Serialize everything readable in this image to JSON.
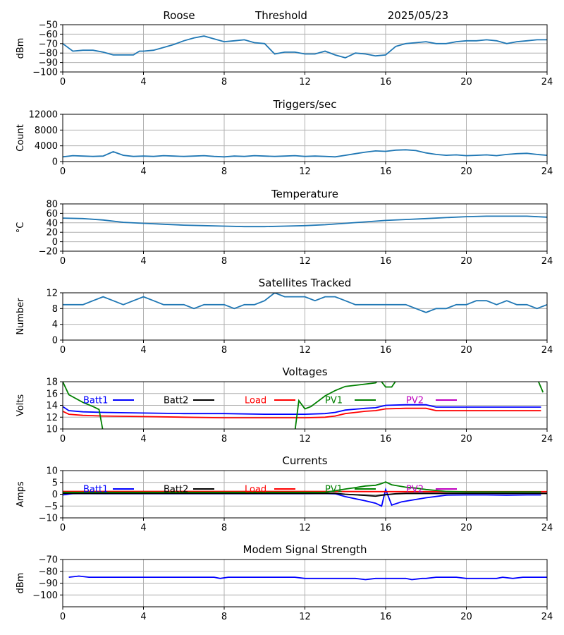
{
  "header": {
    "station": "Roose",
    "mode": "Threshold",
    "date": "2025/05/23"
  },
  "colors": {
    "default": "#1f77b4",
    "batt1": "#0000ff",
    "batt2": "#000000",
    "load": "#ff0000",
    "pv1": "#008000",
    "pv2": "#bf00bf",
    "grid": "#b0b0b0"
  },
  "chart_data": [
    {
      "id": "threshold",
      "type": "line",
      "title": "",
      "ylabel": "dBm",
      "xlim": [
        0,
        24
      ],
      "ylim": [
        -100,
        -50
      ],
      "xticks": [
        0,
        4,
        8,
        12,
        16,
        20,
        24
      ],
      "yticks": [
        -100,
        -90,
        -80,
        -70,
        -60,
        -50
      ],
      "grid": true,
      "series": [
        {
          "color": "#1f77b4",
          "x": [
            0,
            0.5,
            1,
            1.5,
            2,
            2.5,
            3,
            3.5,
            3.8,
            4,
            4.5,
            5,
            5.5,
            6,
            6.5,
            7,
            7.5,
            8,
            8.5,
            9,
            9.5,
            10,
            10.5,
            11,
            11.5,
            12,
            12.5,
            13,
            13.5,
            14,
            14.5,
            15,
            15.5,
            16,
            16.5,
            17,
            17.5,
            18,
            18.5,
            19,
            19.5,
            20,
            20.5,
            21,
            21.5,
            22,
            22.5,
            23,
            23.5,
            24
          ],
          "y": [
            -70,
            -78,
            -77,
            -77,
            -79,
            -82,
            -82,
            -82,
            -78,
            -78,
            -77,
            -74,
            -71,
            -67,
            -64,
            -62,
            -65,
            -68,
            -67,
            -66,
            -69,
            -70,
            -81,
            -79,
            -79,
            -81,
            -81,
            -78,
            -82,
            -85,
            -80,
            -81,
            -83,
            -82,
            -73,
            -70,
            -69,
            -68,
            -70,
            -70,
            -68,
            -67,
            -67,
            -66,
            -67,
            -70,
            -68,
            -67,
            -66,
            -66
          ]
        }
      ]
    },
    {
      "id": "triggers",
      "type": "line",
      "title": "Triggers/sec",
      "ylabel": "Count",
      "xlim": [
        0,
        24
      ],
      "ylim": [
        0,
        12000
      ],
      "xticks": [
        0,
        4,
        8,
        12,
        16,
        20,
        24
      ],
      "yticks": [
        0,
        4000,
        8000,
        12000
      ],
      "grid": true,
      "series": [
        {
          "color": "#1f77b4",
          "x": [
            0,
            0.5,
            1,
            1.5,
            2,
            2.5,
            3,
            3.5,
            4,
            4.5,
            5,
            5.5,
            6,
            6.5,
            7,
            7.5,
            8,
            8.5,
            9,
            9.5,
            10,
            10.5,
            11,
            11.5,
            12,
            12.5,
            13,
            13.5,
            14,
            14.5,
            15,
            15.5,
            16,
            16.5,
            17,
            17.5,
            18,
            18.5,
            19,
            19.5,
            20,
            20.5,
            21,
            21.5,
            22,
            22.5,
            23,
            23.5,
            24
          ],
          "y": [
            1200,
            1500,
            1400,
            1300,
            1400,
            2500,
            1600,
            1300,
            1400,
            1300,
            1500,
            1400,
            1300,
            1400,
            1500,
            1300,
            1200,
            1400,
            1300,
            1500,
            1400,
            1300,
            1400,
            1500,
            1300,
            1400,
            1300,
            1200,
            1600,
            2000,
            2400,
            2700,
            2600,
            2900,
            3000,
            2800,
            2200,
            1800,
            1600,
            1700,
            1500,
            1600,
            1700,
            1500,
            1800,
            2000,
            2100,
            1800,
            1600
          ]
        }
      ]
    },
    {
      "id": "temperature",
      "type": "line",
      "title": "Temperature",
      "ylabel": "°C",
      "xlim": [
        0,
        24
      ],
      "ylim": [
        -20,
        80
      ],
      "xticks": [
        0,
        4,
        8,
        12,
        16,
        20,
        24
      ],
      "yticks": [
        -20,
        0,
        20,
        40,
        60,
        80
      ],
      "grid": true,
      "series": [
        {
          "color": "#1f77b4",
          "x": [
            0,
            1,
            2,
            3,
            4,
            5,
            6,
            7,
            8,
            9,
            10,
            11,
            12,
            13,
            14,
            15,
            16,
            17,
            18,
            19,
            20,
            21,
            22,
            23,
            24
          ],
          "y": [
            50,
            49,
            46,
            41,
            39,
            37,
            35,
            34,
            33,
            32,
            32,
            33,
            34,
            36,
            39,
            42,
            45,
            47,
            49,
            51,
            53,
            54,
            54,
            54,
            52
          ]
        }
      ]
    },
    {
      "id": "satellites",
      "type": "line",
      "title": "Satellites Tracked",
      "ylabel": "Number",
      "xlim": [
        0,
        24
      ],
      "ylim": [
        0,
        12
      ],
      "xticks": [
        0,
        4,
        8,
        12,
        16,
        20,
        24
      ],
      "yticks": [
        0,
        4,
        8,
        12
      ],
      "grid": true,
      "series": [
        {
          "color": "#1f77b4",
          "x": [
            0,
            1,
            1.5,
            2,
            2.5,
            3,
            3.5,
            4,
            4.5,
            5,
            5.5,
            6,
            6.5,
            7,
            7.5,
            8,
            8.5,
            9,
            9.5,
            10,
            10.5,
            11,
            11.5,
            12,
            12.5,
            13,
            13.5,
            14,
            14.5,
            15,
            15.5,
            16,
            16.5,
            17,
            17.5,
            18,
            18.5,
            19,
            19.5,
            20,
            20.5,
            21,
            21.5,
            22,
            22.5,
            23,
            23.5,
            24
          ],
          "y": [
            9,
            9,
            10,
            11,
            10,
            9,
            10,
            11,
            10,
            9,
            9,
            9,
            8,
            9,
            9,
            9,
            8,
            9,
            9,
            10,
            12,
            11,
            11,
            11,
            10,
            11,
            11,
            10,
            9,
            9,
            9,
            9,
            9,
            9,
            8,
            7,
            8,
            8,
            9,
            9,
            10,
            10,
            9,
            10,
            9,
            9,
            8,
            9
          ]
        }
      ]
    },
    {
      "id": "voltages",
      "type": "line",
      "title": "Voltages",
      "ylabel": "Volts",
      "xlim": [
        0,
        24
      ],
      "ylim": [
        10,
        18
      ],
      "xticks": [
        0,
        4,
        8,
        12,
        16,
        20,
        24
      ],
      "yticks": [
        10,
        12,
        14,
        16,
        18
      ],
      "grid": true,
      "legend": true,
      "series": [
        {
          "name": "Batt1",
          "color": "#0000ff",
          "x": [
            0,
            0.3,
            1,
            2,
            4,
            6,
            8,
            10,
            12,
            13,
            13.5,
            14,
            15,
            15.5,
            16,
            17,
            18,
            18.5,
            19,
            20,
            21,
            22,
            23,
            23.7
          ],
          "y": [
            13.8,
            13.1,
            12.9,
            12.8,
            12.7,
            12.6,
            12.6,
            12.5,
            12.5,
            12.6,
            12.8,
            13.2,
            13.5,
            13.6,
            14.0,
            14.1,
            14.1,
            13.7,
            13.7,
            13.7,
            13.7,
            13.7,
            13.7,
            13.7
          ]
        },
        {
          "name": "Batt2",
          "color": "#000000",
          "x": [],
          "y": []
        },
        {
          "name": "Load",
          "color": "#ff0000",
          "x": [
            0,
            0.3,
            1,
            2,
            4,
            6,
            8,
            10,
            12,
            13,
            13.5,
            14,
            15,
            15.5,
            16,
            17,
            18,
            18.5,
            19,
            20,
            21,
            22,
            23,
            23.7
          ],
          "y": [
            13.0,
            12.5,
            12.3,
            12.2,
            12.1,
            12.0,
            11.9,
            11.9,
            11.9,
            12.0,
            12.2,
            12.6,
            13.0,
            13.1,
            13.4,
            13.5,
            13.5,
            13.1,
            13.1,
            13.1,
            13.1,
            13.1,
            13.1,
            13.1
          ]
        },
        {
          "name": "PV1",
          "color": "#008000",
          "x": [
            0,
            0.3,
            1,
            1.5,
            1.8,
            2.0,
            11.5,
            11.7,
            12,
            12.3,
            13,
            13.5,
            14,
            15,
            15.5,
            15.7,
            16,
            16.3,
            16.6,
            23.5,
            23.8
          ],
          "y": [
            18,
            15.8,
            14.5,
            13.8,
            13.3,
            9.5,
            9.5,
            14.8,
            13.4,
            13.8,
            15.6,
            16.5,
            17.2,
            17.6,
            17.8,
            18.4,
            17.1,
            17.1,
            18.6,
            18.6,
            16.2
          ]
        },
        {
          "name": "PV2",
          "color": "#bf00bf",
          "x": [],
          "y": []
        }
      ]
    },
    {
      "id": "currents",
      "type": "line",
      "title": "Currents",
      "ylabel": "Amps",
      "xlim": [
        0,
        24
      ],
      "ylim": [
        -10,
        10
      ],
      "xticks": [
        0,
        4,
        8,
        12,
        16,
        20,
        24
      ],
      "yticks": [
        -10,
        -5,
        0,
        5,
        10
      ],
      "grid": true,
      "legend": true,
      "series": [
        {
          "name": "Batt1",
          "color": "#0000ff",
          "x": [
            0,
            0.5,
            1,
            2,
            4,
            8,
            12,
            13,
            13.5,
            14,
            15,
            15.5,
            15.8,
            16,
            16.3,
            16.8,
            17.5,
            18,
            19,
            20,
            21,
            22,
            23,
            23.7
          ],
          "y": [
            -0.3,
            0.3,
            0.4,
            0.3,
            0.3,
            0.3,
            0.3,
            0.4,
            0.2,
            -1.0,
            -2.8,
            -3.8,
            -5.0,
            2.0,
            -4.6,
            -3.2,
            -2.2,
            -1.5,
            -0.4,
            -0.3,
            -0.3,
            -0.4,
            -0.3,
            -0.3
          ]
        },
        {
          "name": "Batt2",
          "color": "#000000",
          "x": [
            0,
            4,
            8,
            12,
            13.5,
            14,
            15,
            15.5,
            16,
            16.5,
            17,
            18,
            20,
            24
          ],
          "y": [
            0.4,
            0.4,
            0.4,
            0.4,
            0.4,
            0.0,
            -0.5,
            -0.8,
            -0.2,
            0.2,
            0.4,
            0.4,
            0.4,
            0.4
          ]
        },
        {
          "name": "Load",
          "color": "#ff0000",
          "x": [
            0,
            1,
            4,
            8,
            12,
            16,
            20,
            24
          ],
          "y": [
            1.2,
            1.2,
            1.2,
            1.2,
            1.2,
            1.1,
            1.1,
            1.1
          ]
        },
        {
          "name": "PV1",
          "color": "#008000",
          "x": [
            0,
            4,
            8,
            12,
            13,
            13.5,
            14,
            14.5,
            15,
            15.5,
            15.8,
            16,
            16.3,
            17,
            17.5,
            18,
            18.5,
            19,
            20,
            21,
            22,
            23,
            23.7
          ],
          "y": [
            0.8,
            0.8,
            0.8,
            0.8,
            0.8,
            1.5,
            2.2,
            2.8,
            3.5,
            3.8,
            4.5,
            5.2,
            4.0,
            3.0,
            2.6,
            2.0,
            1.6,
            1.2,
            1.0,
            1.0,
            1.0,
            1.0,
            1.0
          ]
        },
        {
          "name": "PV2",
          "color": "#bf00bf",
          "x": [],
          "y": []
        }
      ]
    },
    {
      "id": "modem",
      "type": "line",
      "title": "Modem Signal Strength",
      "ylabel": "dBm",
      "xlim": [
        0,
        24
      ],
      "ylim": [
        -110,
        -70
      ],
      "xticks": [
        0,
        4,
        8,
        12,
        16,
        20,
        24
      ],
      "yticks": [
        -100,
        -90,
        -80,
        -70
      ],
      "grid": true,
      "series": [
        {
          "color": "#0000ff",
          "x": [
            0.3,
            0.8,
            1.3,
            2,
            3,
            4,
            5,
            6,
            7,
            7.5,
            7.8,
            8.2,
            9,
            10,
            11,
            11.5,
            12,
            13,
            14,
            14.5,
            15,
            15.5,
            16,
            17,
            17.3,
            17.8,
            18,
            18.5,
            19,
            19.5,
            20,
            21,
            21.5,
            21.8,
            22.3,
            22.8,
            23.3,
            24
          ],
          "y": [
            -85,
            -84,
            -85,
            -85,
            -85,
            -85,
            -85,
            -85,
            -85,
            -85,
            -86,
            -85,
            -85,
            -85,
            -85,
            -85,
            -86,
            -86,
            -86,
            -86,
            -87,
            -86,
            -86,
            -86,
            -87,
            -86,
            -86,
            -85,
            -85,
            -85,
            -86,
            -86,
            -86,
            -85,
            -86,
            -85,
            -85,
            -85
          ]
        }
      ]
    }
  ]
}
